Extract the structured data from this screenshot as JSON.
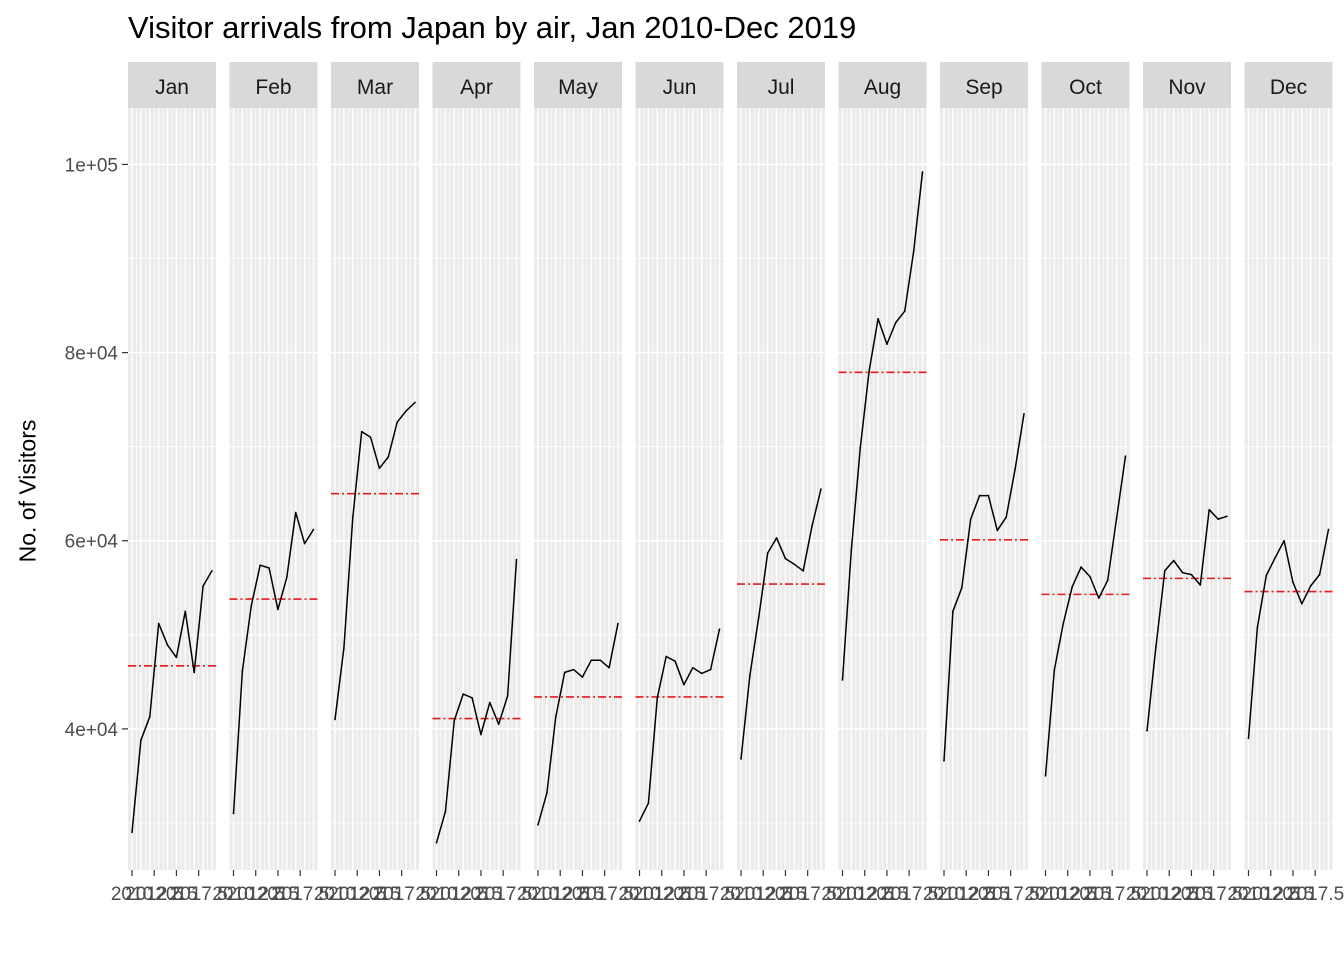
{
  "chart_data": {
    "type": "line",
    "title": "Visitor arrivals from Japan by air, Jan 2010-Dec 2019",
    "xlabel": "",
    "ylabel": "No. of Visitors",
    "ylim": [
      25000,
      106000
    ],
    "xlim": [
      2010,
      2019
    ],
    "y_ticks": [
      40000,
      60000,
      80000,
      100000
    ],
    "y_tick_labels": [
      "4e+04",
      "6e+04",
      "8e+04",
      "1e+05"
    ],
    "x_tick_labels": [
      "2010",
      "2012.5",
      "2015",
      "2017.5"
    ],
    "years": [
      2010,
      2011,
      2012,
      2013,
      2014,
      2015,
      2016,
      2017,
      2018,
      2019
    ],
    "grid": true,
    "legend": "none",
    "colors": {
      "series": "#000000",
      "mean_line": "#e41a1c",
      "panel_bg": "#ebebeb",
      "strip_bg": "#d9d9d9",
      "grid": "#ffffff"
    },
    "panels": [
      {
        "month": "Jan",
        "values": [
          29000,
          38800,
          41300,
          51200,
          48900,
          47600,
          52500,
          46000,
          55200,
          56800
        ],
        "mean": 46700
      },
      {
        "month": "Feb",
        "values": [
          31000,
          46200,
          53100,
          57400,
          57100,
          52700,
          56100,
          63000,
          59700,
          61200
        ],
        "mean": 53800
      },
      {
        "month": "Mar",
        "values": [
          41000,
          48600,
          62500,
          71600,
          71000,
          67700,
          68900,
          72600,
          73800,
          74700
        ],
        "mean": 65000
      },
      {
        "month": "Apr",
        "values": [
          27900,
          31200,
          40900,
          43700,
          43300,
          39400,
          42800,
          40500,
          43500,
          58000
        ],
        "mean": 41100
      },
      {
        "month": "May",
        "values": [
          29800,
          33200,
          41300,
          46000,
          46300,
          45500,
          47300,
          47300,
          46500,
          51200
        ],
        "mean": 43400
      },
      {
        "month": "Jun",
        "values": [
          30200,
          32100,
          43300,
          47700,
          47200,
          44700,
          46500,
          45900,
          46300,
          50600
        ],
        "mean": 43400
      },
      {
        "month": "Jul",
        "values": [
          36800,
          45700,
          51900,
          58700,
          60300,
          58100,
          57500,
          56800,
          61600,
          65500
        ],
        "mean": 55400
      },
      {
        "month": "Aug",
        "values": [
          45200,
          59100,
          69900,
          78100,
          83600,
          80900,
          83200,
          84400,
          90700,
          99200
        ],
        "mean": 77900
      },
      {
        "month": "Sep",
        "values": [
          36600,
          52500,
          55000,
          62300,
          64800,
          64800,
          61100,
          62500,
          67600,
          73500
        ],
        "mean": 60100
      },
      {
        "month": "Oct",
        "values": [
          35000,
          46300,
          51200,
          55100,
          57200,
          56200,
          53900,
          55800,
          62400,
          69000
        ],
        "mean": 54300
      },
      {
        "month": "Nov",
        "values": [
          39800,
          48700,
          56800,
          57900,
          56600,
          56400,
          55300,
          63300,
          62300,
          62600
        ],
        "mean": 56000
      },
      {
        "month": "Dec",
        "values": [
          39000,
          50800,
          56300,
          58200,
          60000,
          55600,
          53300,
          55200,
          56400,
          61200
        ],
        "mean": 54600
      }
    ]
  }
}
